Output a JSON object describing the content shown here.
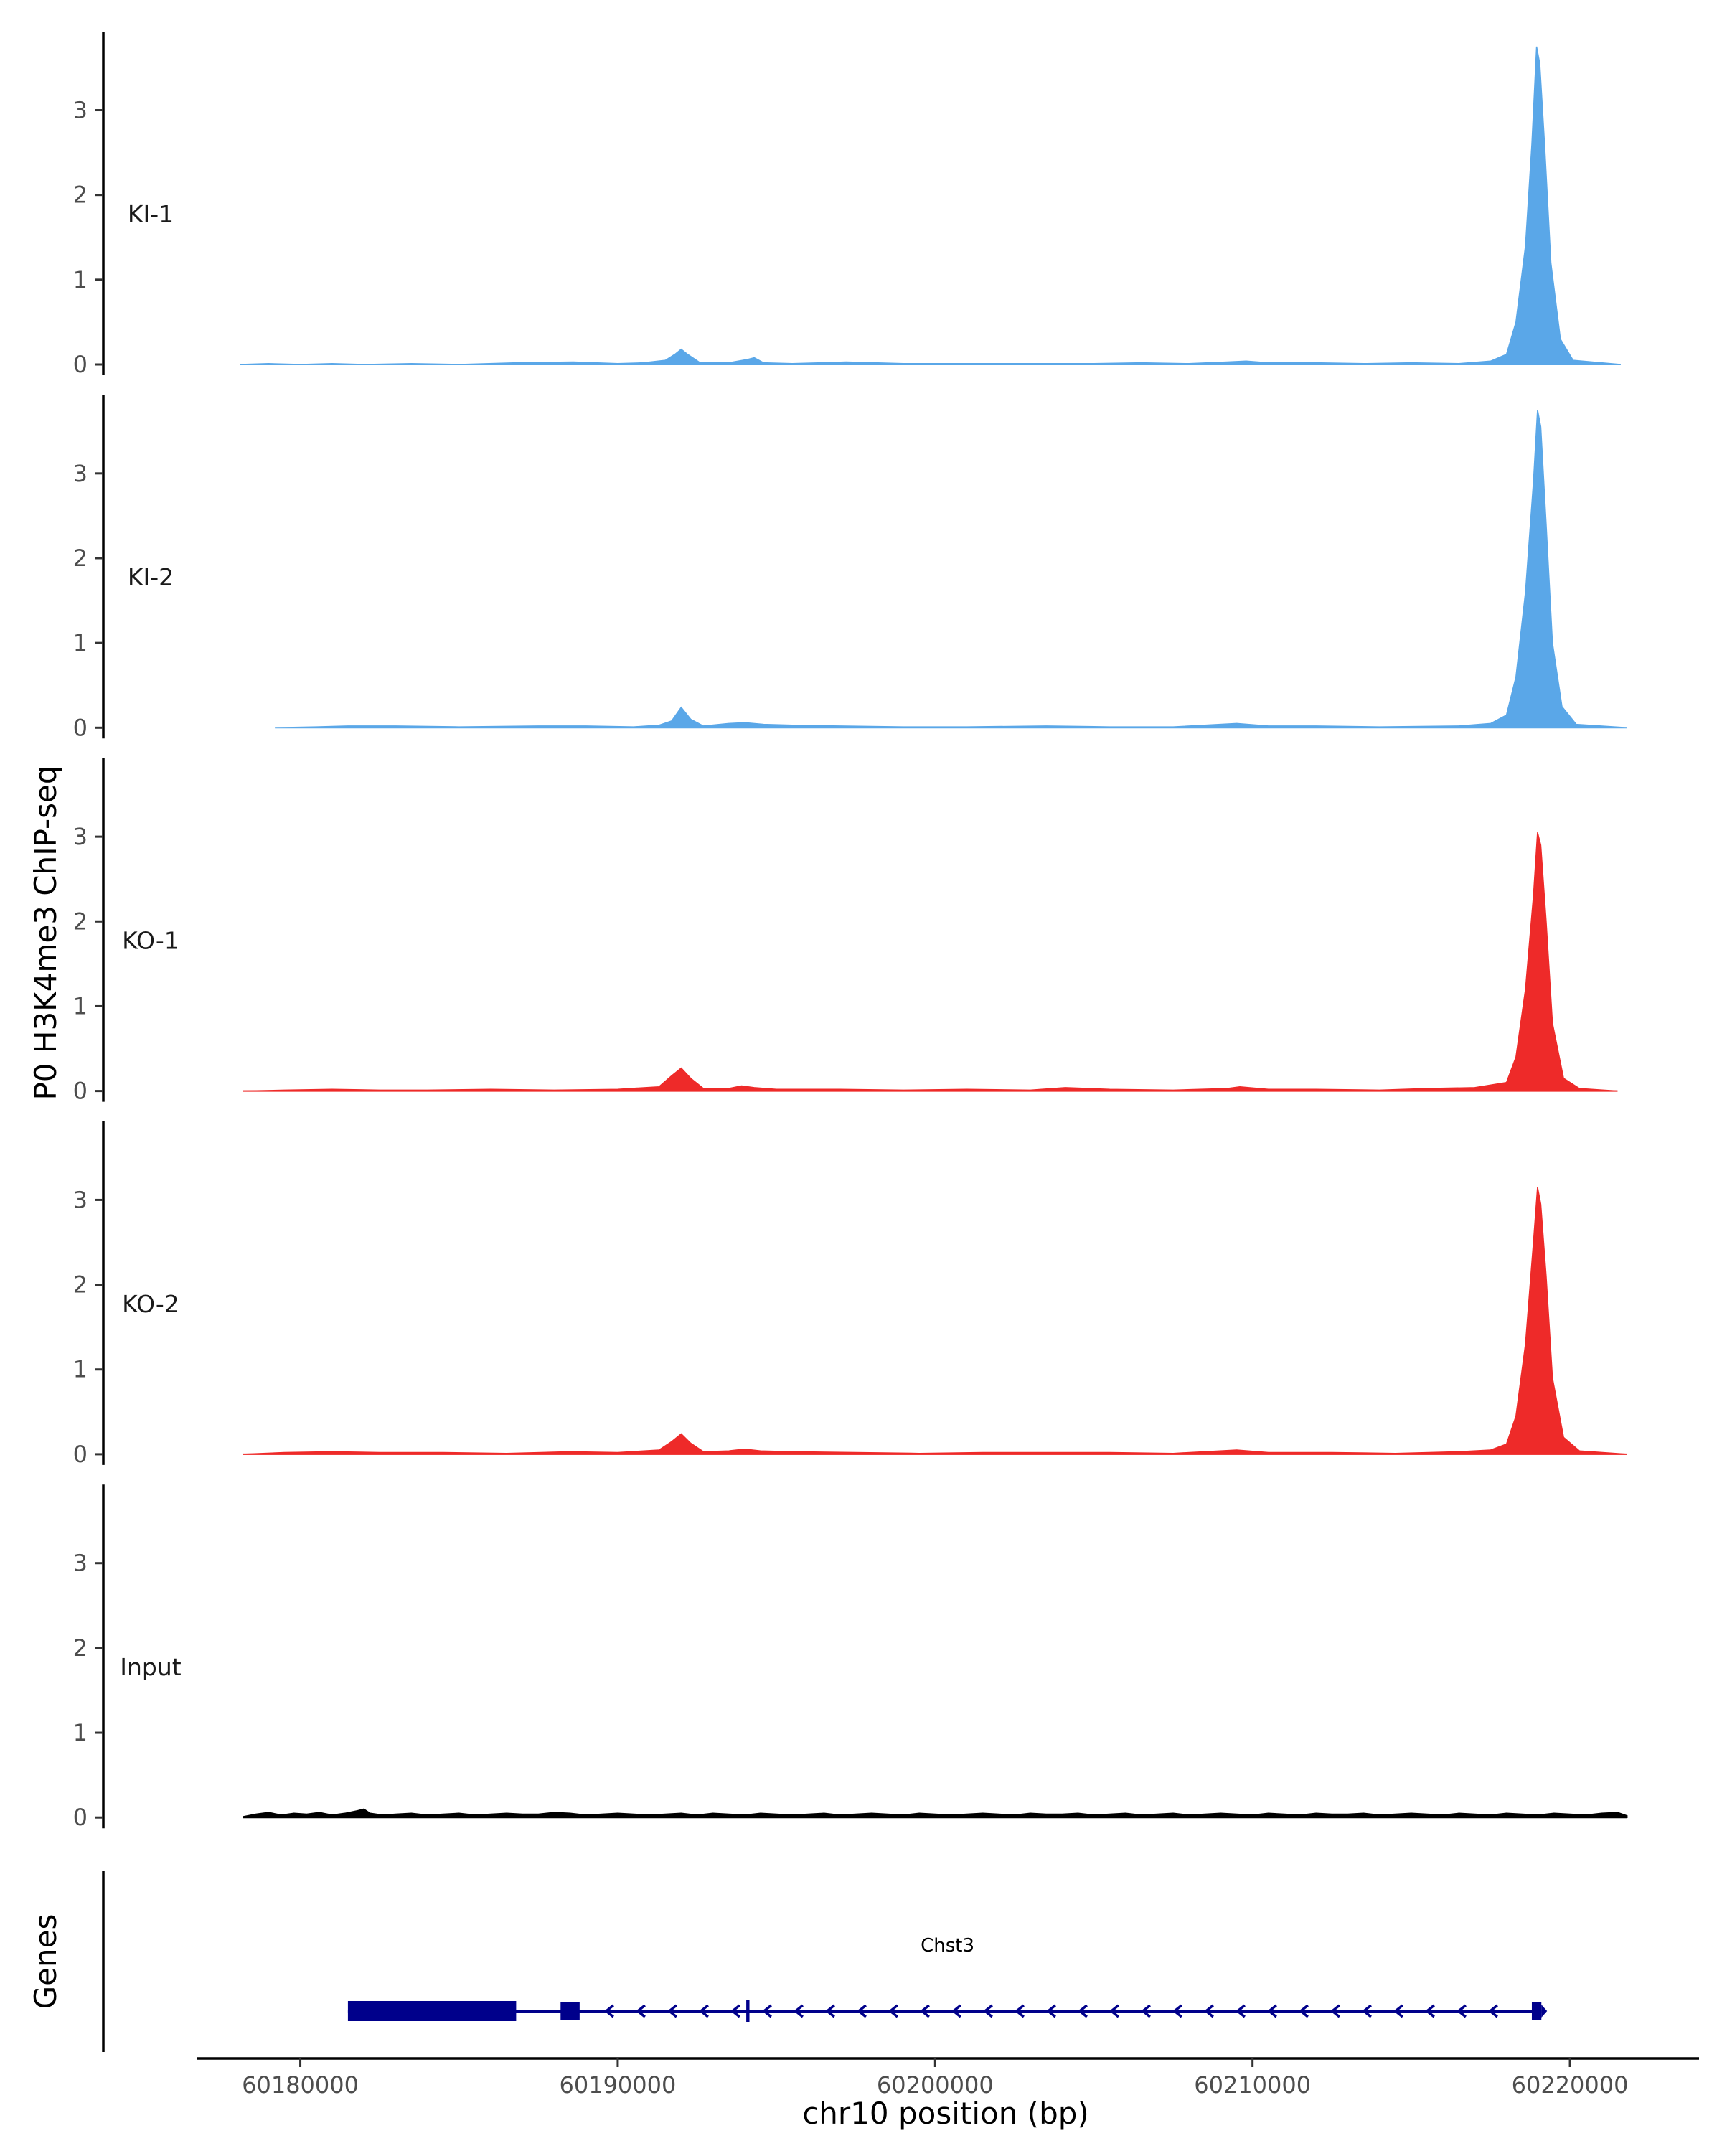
{
  "chart_data": {
    "type": "area",
    "ylabel": "P0 H3K4me3 ChIP-seq",
    "xlabel": "chr10 position (bp)",
    "xlim": [
      60176800,
      60224000
    ],
    "ylim": [
      0,
      3.8
    ],
    "y_ticks": [
      "0",
      "1",
      "2",
      "3"
    ],
    "x_ticks": [
      {
        "value": 60180000,
        "label": "60180000"
      },
      {
        "value": 60190000,
        "label": "60190000"
      },
      {
        "value": 60200000,
        "label": "60200000"
      },
      {
        "value": 60210000,
        "label": "60210000"
      },
      {
        "value": 60220000,
        "label": "60220000"
      }
    ],
    "grid": false,
    "series": [
      {
        "name": "KI-1",
        "color": "#5aa7e8",
        "points": [
          [
            60178100,
            0
          ],
          [
            60179000,
            0.01
          ],
          [
            60180000,
            0
          ],
          [
            60181000,
            0.01
          ],
          [
            60182000,
            0
          ],
          [
            60183500,
            0.01
          ],
          [
            60185000,
            0
          ],
          [
            60186800,
            0.02
          ],
          [
            60188600,
            0.03
          ],
          [
            60190000,
            0.01
          ],
          [
            60190800,
            0.02
          ],
          [
            60191500,
            0.05
          ],
          [
            60191800,
            0.12
          ],
          [
            60192000,
            0.18
          ],
          [
            60192200,
            0.12
          ],
          [
            60192600,
            0.02
          ],
          [
            60193500,
            0.02
          ],
          [
            60194100,
            0.06
          ],
          [
            60194300,
            0.08
          ],
          [
            60194600,
            0.02
          ],
          [
            60195500,
            0.01
          ],
          [
            60197200,
            0.03
          ],
          [
            60199000,
            0.01
          ],
          [
            60201000,
            0.01
          ],
          [
            60203000,
            0.01
          ],
          [
            60205000,
            0.01
          ],
          [
            60206500,
            0.02
          ],
          [
            60208000,
            0.01
          ],
          [
            60209200,
            0.03
          ],
          [
            60209800,
            0.04
          ],
          [
            60210500,
            0.02
          ],
          [
            60212000,
            0.02
          ],
          [
            60213500,
            0.01
          ],
          [
            60215000,
            0.02
          ],
          [
            60216500,
            0.01
          ],
          [
            60217500,
            0.04
          ],
          [
            60218000,
            0.12
          ],
          [
            60218300,
            0.5
          ],
          [
            60218600,
            1.4
          ],
          [
            60218800,
            2.6
          ],
          [
            60218950,
            3.75
          ],
          [
            60219050,
            3.55
          ],
          [
            60219200,
            2.6
          ],
          [
            60219400,
            1.2
          ],
          [
            60219700,
            0.3
          ],
          [
            60220100,
            0.05
          ],
          [
            60221600,
            0
          ]
        ]
      },
      {
        "name": "KI-2",
        "color": "#5aa7e8",
        "points": [
          [
            60179200,
            0
          ],
          [
            60180500,
            0.01
          ],
          [
            60181500,
            0.02
          ],
          [
            60183000,
            0.02
          ],
          [
            60185000,
            0.01
          ],
          [
            60187500,
            0.02
          ],
          [
            60189000,
            0.02
          ],
          [
            60190500,
            0.01
          ],
          [
            60191300,
            0.03
          ],
          [
            60191700,
            0.08
          ],
          [
            60192000,
            0.24
          ],
          [
            60192300,
            0.1
          ],
          [
            60192700,
            0.02
          ],
          [
            60193500,
            0.05
          ],
          [
            60194000,
            0.06
          ],
          [
            60194600,
            0.04
          ],
          [
            60195500,
            0.03
          ],
          [
            60197000,
            0.02
          ],
          [
            60199000,
            0.01
          ],
          [
            60201000,
            0.01
          ],
          [
            60203500,
            0.02
          ],
          [
            60205500,
            0.01
          ],
          [
            60207500,
            0.01
          ],
          [
            60209500,
            0.05
          ],
          [
            60210500,
            0.02
          ],
          [
            60212000,
            0.02
          ],
          [
            60214000,
            0.01
          ],
          [
            60216500,
            0.02
          ],
          [
            60217500,
            0.05
          ],
          [
            60218000,
            0.15
          ],
          [
            60218300,
            0.6
          ],
          [
            60218600,
            1.6
          ],
          [
            60218850,
            2.9
          ],
          [
            60218980,
            3.75
          ],
          [
            60219080,
            3.55
          ],
          [
            60219250,
            2.4
          ],
          [
            60219450,
            1.0
          ],
          [
            60219750,
            0.25
          ],
          [
            60220200,
            0.04
          ],
          [
            60221800,
            0
          ]
        ]
      },
      {
        "name": "KO-1",
        "color": "#ee2a29",
        "points": [
          [
            60178200,
            0
          ],
          [
            60179500,
            0.01
          ],
          [
            60181000,
            0.02
          ],
          [
            60182500,
            0.01
          ],
          [
            60184000,
            0.01
          ],
          [
            60186000,
            0.02
          ],
          [
            60188000,
            0.01
          ],
          [
            60190000,
            0.02
          ],
          [
            60191300,
            0.05
          ],
          [
            60191700,
            0.18
          ],
          [
            60192000,
            0.27
          ],
          [
            60192300,
            0.15
          ],
          [
            60192700,
            0.03
          ],
          [
            60193500,
            0.03
          ],
          [
            60193900,
            0.06
          ],
          [
            60194300,
            0.04
          ],
          [
            60195000,
            0.02
          ],
          [
            60197000,
            0.02
          ],
          [
            60199000,
            0.01
          ],
          [
            60201000,
            0.02
          ],
          [
            60203000,
            0.01
          ],
          [
            60204100,
            0.04
          ],
          [
            60205500,
            0.02
          ],
          [
            60207500,
            0.01
          ],
          [
            60209200,
            0.03
          ],
          [
            60209600,
            0.05
          ],
          [
            60210500,
            0.02
          ],
          [
            60212000,
            0.02
          ],
          [
            60214000,
            0.01
          ],
          [
            60215500,
            0.03
          ],
          [
            60217000,
            0.04
          ],
          [
            60218000,
            0.1
          ],
          [
            60218300,
            0.4
          ],
          [
            60218600,
            1.2
          ],
          [
            60218850,
            2.3
          ],
          [
            60218980,
            3.05
          ],
          [
            60219080,
            2.9
          ],
          [
            60219250,
            2.0
          ],
          [
            60219450,
            0.8
          ],
          [
            60219800,
            0.15
          ],
          [
            60220300,
            0.03
          ],
          [
            60221500,
            0
          ]
        ]
      },
      {
        "name": "KO-2",
        "color": "#ee2a29",
        "points": [
          [
            60178200,
            0
          ],
          [
            60179500,
            0.02
          ],
          [
            60181000,
            0.03
          ],
          [
            60182500,
            0.02
          ],
          [
            60184500,
            0.02
          ],
          [
            60186500,
            0.01
          ],
          [
            60188500,
            0.03
          ],
          [
            60190000,
            0.02
          ],
          [
            60191300,
            0.05
          ],
          [
            60191700,
            0.15
          ],
          [
            60192000,
            0.24
          ],
          [
            60192300,
            0.13
          ],
          [
            60192700,
            0.03
          ],
          [
            60193500,
            0.04
          ],
          [
            60194000,
            0.06
          ],
          [
            60194500,
            0.04
          ],
          [
            60195500,
            0.03
          ],
          [
            60197500,
            0.02
          ],
          [
            60199500,
            0.01
          ],
          [
            60201500,
            0.02
          ],
          [
            60203500,
            0.02
          ],
          [
            60205500,
            0.02
          ],
          [
            60207500,
            0.01
          ],
          [
            60209500,
            0.05
          ],
          [
            60210500,
            0.02
          ],
          [
            60212500,
            0.02
          ],
          [
            60214500,
            0.01
          ],
          [
            60216500,
            0.03
          ],
          [
            60217500,
            0.05
          ],
          [
            60218000,
            0.12
          ],
          [
            60218300,
            0.45
          ],
          [
            60218600,
            1.3
          ],
          [
            60218850,
            2.5
          ],
          [
            60218980,
            3.15
          ],
          [
            60219080,
            2.95
          ],
          [
            60219250,
            2.1
          ],
          [
            60219450,
            0.9
          ],
          [
            60219800,
            0.2
          ],
          [
            60220300,
            0.04
          ],
          [
            60221800,
            0
          ]
        ]
      },
      {
        "name": "Input",
        "color": "#000000",
        "points": [
          [
            60178200,
            0.01
          ],
          [
            60178600,
            0.04
          ],
          [
            60179000,
            0.06
          ],
          [
            60179400,
            0.03
          ],
          [
            60179800,
            0.05
          ],
          [
            60180200,
            0.04
          ],
          [
            60180600,
            0.06
          ],
          [
            60181000,
            0.03
          ],
          [
            60181400,
            0.05
          ],
          [
            60181800,
            0.08
          ],
          [
            60182000,
            0.1
          ],
          [
            60182200,
            0.05
          ],
          [
            60182600,
            0.03
          ],
          [
            60183000,
            0.04
          ],
          [
            60183500,
            0.05
          ],
          [
            60184000,
            0.03
          ],
          [
            60184500,
            0.04
          ],
          [
            60185000,
            0.05
          ],
          [
            60185500,
            0.03
          ],
          [
            60186000,
            0.04
          ],
          [
            60186500,
            0.05
          ],
          [
            60187000,
            0.04
          ],
          [
            60187500,
            0.04
          ],
          [
            60188000,
            0.06
          ],
          [
            60188500,
            0.05
          ],
          [
            60189000,
            0.03
          ],
          [
            60189500,
            0.04
          ],
          [
            60190000,
            0.05
          ],
          [
            60190500,
            0.04
          ],
          [
            60191000,
            0.03
          ],
          [
            60191500,
            0.04
          ],
          [
            60192000,
            0.05
          ],
          [
            60192500,
            0.03
          ],
          [
            60193000,
            0.05
          ],
          [
            60193500,
            0.04
          ],
          [
            60194000,
            0.03
          ],
          [
            60194500,
            0.05
          ],
          [
            60195000,
            0.04
          ],
          [
            60195500,
            0.03
          ],
          [
            60196000,
            0.04
          ],
          [
            60196500,
            0.05
          ],
          [
            60197000,
            0.03
          ],
          [
            60197500,
            0.04
          ],
          [
            60198000,
            0.05
          ],
          [
            60198500,
            0.04
          ],
          [
            60199000,
            0.03
          ],
          [
            60199500,
            0.05
          ],
          [
            60200000,
            0.04
          ],
          [
            60200500,
            0.03
          ],
          [
            60201000,
            0.04
          ],
          [
            60201500,
            0.05
          ],
          [
            60202000,
            0.04
          ],
          [
            60202500,
            0.03
          ],
          [
            60203000,
            0.05
          ],
          [
            60203500,
            0.04
          ],
          [
            60204000,
            0.04
          ],
          [
            60204500,
            0.05
          ],
          [
            60205000,
            0.03
          ],
          [
            60205500,
            0.04
          ],
          [
            60206000,
            0.05
          ],
          [
            60206500,
            0.03
          ],
          [
            60207000,
            0.04
          ],
          [
            60207500,
            0.05
          ],
          [
            60208000,
            0.03
          ],
          [
            60208500,
            0.04
          ],
          [
            60209000,
            0.05
          ],
          [
            60209500,
            0.04
          ],
          [
            60210000,
            0.03
          ],
          [
            60210500,
            0.05
          ],
          [
            60211000,
            0.04
          ],
          [
            60211500,
            0.03
          ],
          [
            60212000,
            0.05
          ],
          [
            60212500,
            0.04
          ],
          [
            60213000,
            0.04
          ],
          [
            60213500,
            0.05
          ],
          [
            60214000,
            0.03
          ],
          [
            60214500,
            0.04
          ],
          [
            60215000,
            0.05
          ],
          [
            60215500,
            0.04
          ],
          [
            60216000,
            0.03
          ],
          [
            60216500,
            0.05
          ],
          [
            60217000,
            0.04
          ],
          [
            60217500,
            0.03
          ],
          [
            60218000,
            0.05
          ],
          [
            60218500,
            0.04
          ],
          [
            60219000,
            0.03
          ],
          [
            60219500,
            0.05
          ],
          [
            60220000,
            0.04
          ],
          [
            60220500,
            0.03
          ],
          [
            60221000,
            0.05
          ],
          [
            60221500,
            0.06
          ],
          [
            60221800,
            0.02
          ]
        ]
      }
    ],
    "genes_track": {
      "label": "Genes",
      "gene_name": "Chst3",
      "color": "#00008b",
      "strand": "-",
      "start": 60181500,
      "end": 60219100,
      "exons": [
        {
          "start": 60181500,
          "end": 60186800,
          "type": "utr-thick"
        },
        {
          "start": 60188200,
          "end": 60188800,
          "type": "exon"
        },
        {
          "start": 60194050,
          "end": 60194150,
          "type": "exon-thin"
        },
        {
          "start": 60218800,
          "end": 60219100,
          "type": "exon"
        }
      ]
    }
  }
}
